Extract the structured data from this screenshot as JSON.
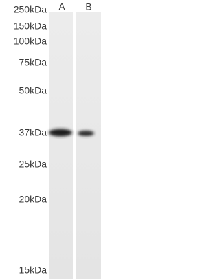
{
  "lanes": [
    "A",
    "B"
  ],
  "markers": [
    "250kDa",
    "150kDa",
    "100kDa",
    "75kDa",
    "50kDa",
    "37kDa",
    "25kDa",
    "20kDa",
    "15kDa"
  ]
}
